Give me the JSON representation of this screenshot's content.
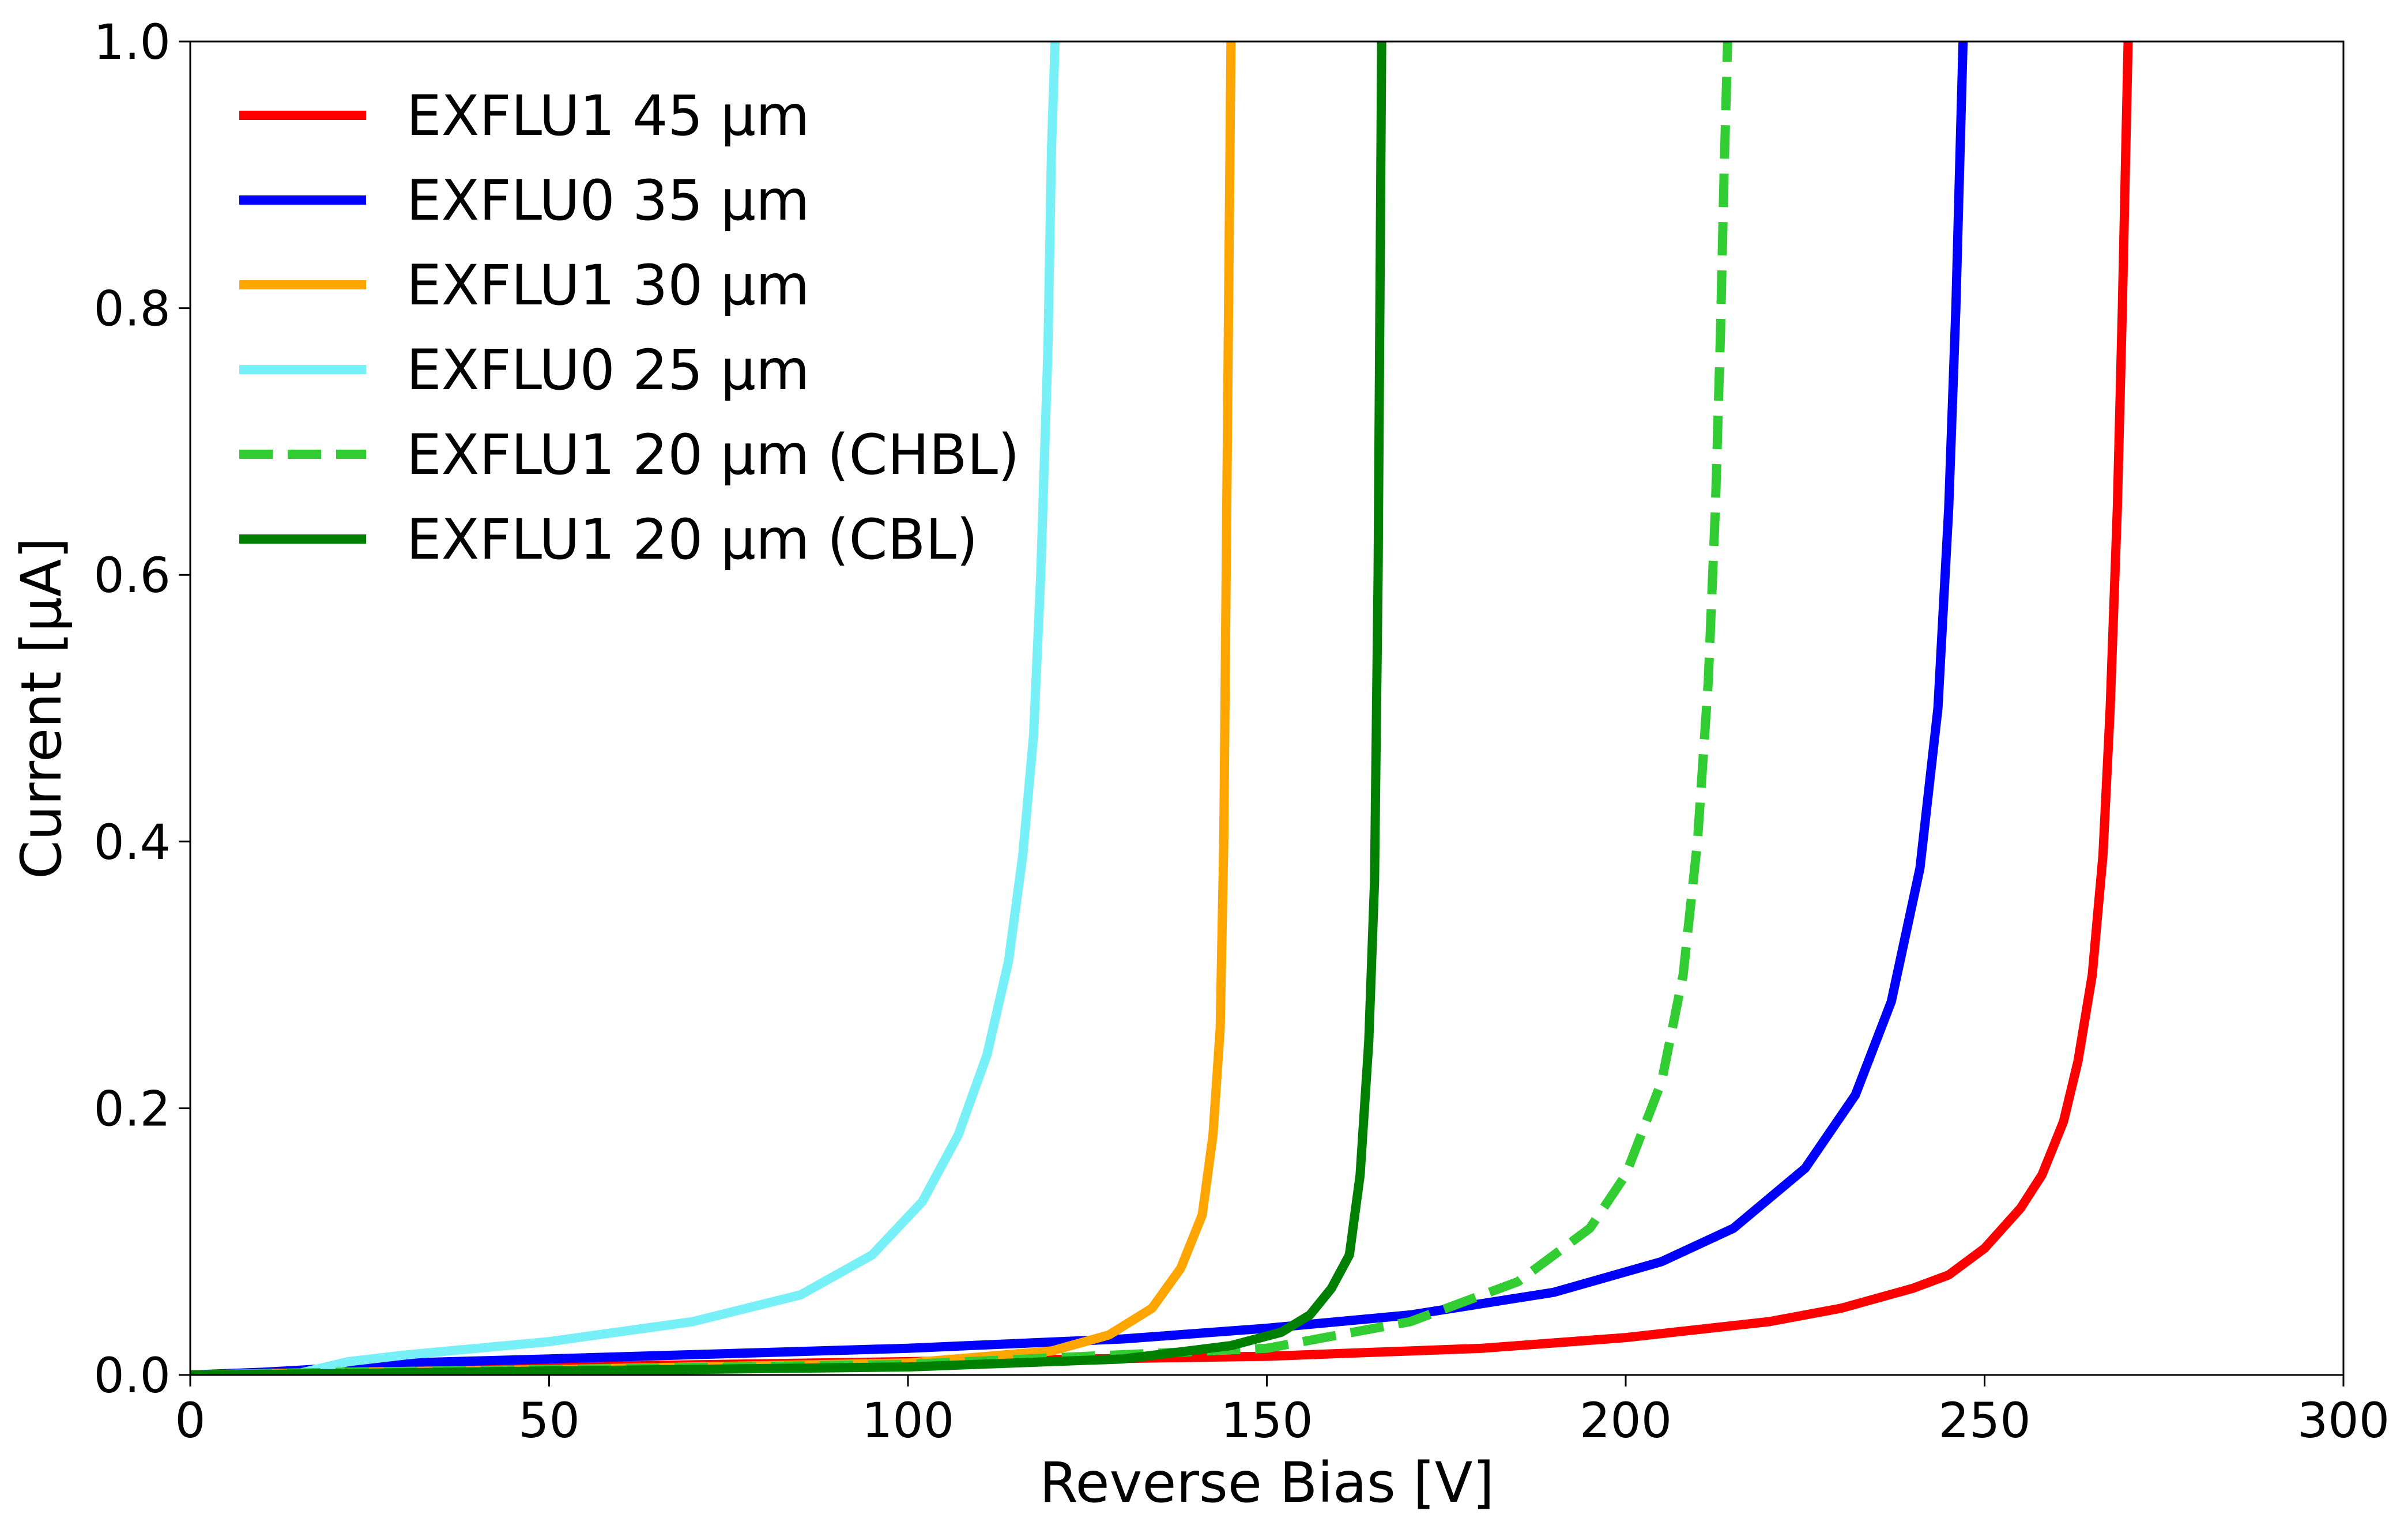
{
  "chart_data": {
    "type": "line",
    "title": "",
    "xlabel": "Reverse Bias [V]",
    "ylabel": "Current [µA]",
    "xlim": [
      0,
      300
    ],
    "ylim": [
      0,
      1.0
    ],
    "grid": false,
    "legend_position": "top-left",
    "x_ticks": [
      0,
      50,
      100,
      150,
      200,
      250,
      300
    ],
    "x_tick_labels": [
      "0",
      "50",
      "100",
      "150",
      "200",
      "250",
      "300"
    ],
    "y_ticks": [
      0,
      0.2,
      0.4,
      0.6,
      0.8,
      1.0
    ],
    "y_tick_labels": [
      "0.0",
      "0.2",
      "0.4",
      "0.6",
      "0.8",
      "1.0"
    ],
    "series": [
      {
        "name": "EXFLU1 45 µm",
        "color": "#ff0000",
        "dash": "solid",
        "x": [
          0,
          20,
          50,
          100,
          150,
          180,
          200,
          220,
          230,
          240,
          245,
          250,
          255,
          258,
          261,
          263,
          265,
          266.5,
          267.5,
          268.5,
          269.2,
          270
        ],
        "y": [
          0,
          0.003,
          0.006,
          0.01,
          0.014,
          0.02,
          0.028,
          0.04,
          0.05,
          0.065,
          0.075,
          0.095,
          0.125,
          0.15,
          0.19,
          0.235,
          0.3,
          0.39,
          0.5,
          0.65,
          0.8,
          1.0
        ]
      },
      {
        "name": "EXFLU0 35 µm",
        "color": "#0000ff",
        "dash": "solid",
        "x": [
          0,
          10,
          20,
          30,
          50,
          100,
          130,
          150,
          170,
          190,
          205,
          215,
          225,
          232,
          237,
          241,
          243.5,
          245,
          246,
          246.5,
          247
        ],
        "y": [
          0,
          0.002,
          0.005,
          0.009,
          0.012,
          0.02,
          0.027,
          0.035,
          0.045,
          0.062,
          0.085,
          0.11,
          0.155,
          0.21,
          0.28,
          0.38,
          0.5,
          0.65,
          0.8,
          0.9,
          1.0
        ]
      },
      {
        "name": "EXFLU1 30 µm",
        "color": "#ffa500",
        "dash": "solid",
        "x": [
          0,
          20,
          50,
          100,
          120,
          128,
          134,
          138,
          141,
          142.5,
          143.5,
          144,
          144.5,
          145
        ],
        "y": [
          0,
          0.002,
          0.004,
          0.009,
          0.018,
          0.03,
          0.05,
          0.08,
          0.12,
          0.18,
          0.26,
          0.4,
          0.7,
          1.0
        ]
      },
      {
        "name": "EXFLU0 25 µm",
        "color": "#78f0f8",
        "dash": "solid",
        "x": [
          0,
          15,
          22,
          30,
          50,
          70,
          85,
          95,
          102,
          107,
          111,
          114,
          116,
          117.5,
          118.5,
          119.5,
          120,
          120.5
        ],
        "y": [
          0,
          0.001,
          0.01,
          0.015,
          0.025,
          0.04,
          0.06,
          0.09,
          0.13,
          0.18,
          0.24,
          0.31,
          0.39,
          0.48,
          0.6,
          0.77,
          0.92,
          1.0
        ]
      },
      {
        "name": "EXFLU1 20 µm (CHBL)",
        "color": "#32cd32",
        "dash": "dashed",
        "x": [
          0,
          20,
          50,
          100,
          150,
          170,
          185,
          195,
          200,
          205,
          208,
          210,
          211.5,
          212.5,
          213.2,
          213.7,
          214.2
        ],
        "y": [
          0,
          0.002,
          0.004,
          0.008,
          0.02,
          0.04,
          0.07,
          0.11,
          0.15,
          0.22,
          0.3,
          0.4,
          0.52,
          0.65,
          0.78,
          0.9,
          1.0
        ]
      },
      {
        "name": "EXFLU1 20 µm (CBL)",
        "color": "#008000",
        "dash": "solid",
        "x": [
          0,
          20,
          50,
          100,
          130,
          145,
          152,
          156,
          159,
          161.5,
          163,
          164.2,
          165,
          165.5,
          166
        ],
        "y": [
          0,
          0.001,
          0.003,
          0.006,
          0.012,
          0.022,
          0.032,
          0.045,
          0.065,
          0.09,
          0.15,
          0.25,
          0.37,
          0.6,
          1.0
        ]
      }
    ]
  }
}
